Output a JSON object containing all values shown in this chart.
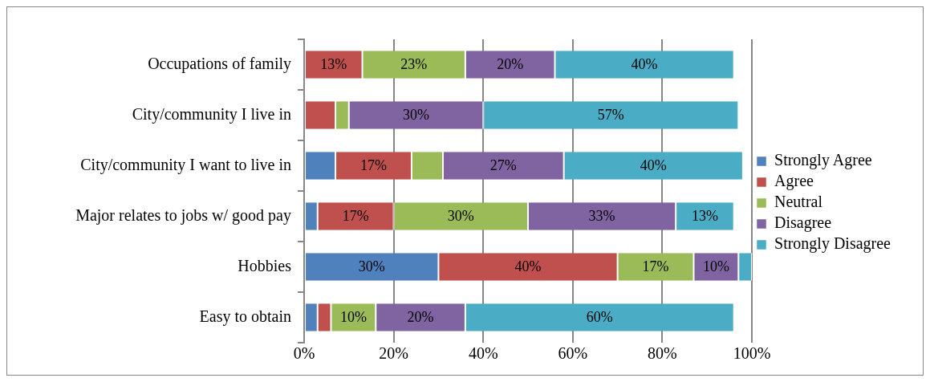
{
  "chart_data": {
    "type": "bar",
    "orientation": "horizontal",
    "stacked": true,
    "categories": [
      "Occupations of family",
      "City/community I live in",
      "City/community I want to live in",
      "Major relates to jobs w/ good pay",
      "Hobbies",
      "Easy to obtain"
    ],
    "series": [
      {
        "name": "Strongly Agree",
        "color": "#4f81bd",
        "values": [
          0,
          0,
          7.0,
          3.0,
          30.0,
          3.0
        ],
        "value_labels": [
          null,
          null,
          null,
          null,
          "30%",
          null
        ]
      },
      {
        "name": "Agree",
        "color": "#c0504d",
        "values": [
          13,
          7,
          17,
          17,
          40,
          3
        ],
        "value_labels": [
          "13%",
          null,
          "17%",
          "17%",
          "40%",
          null
        ]
      },
      {
        "name": "Neutral",
        "color": "#9bbb59",
        "values": [
          23,
          3,
          7,
          30,
          17,
          10
        ],
        "value_labels": [
          "23%",
          null,
          null,
          "30%",
          "17%",
          "10%"
        ]
      },
      {
        "name": "Disagree",
        "color": "#8064a2",
        "values": [
          20,
          30,
          27,
          33,
          10,
          20
        ],
        "value_labels": [
          "20%",
          "30%",
          "27%",
          "33%",
          "10%",
          "20%"
        ]
      },
      {
        "name": "Strongly Disagree",
        "color": "#4bacc6",
        "values": [
          40,
          57,
          40,
          13,
          3,
          60
        ],
        "value_labels": [
          "40%",
          "57%",
          "40%",
          "13%",
          null,
          "60%"
        ]
      }
    ],
    "xlim": [
      0,
      100
    ],
    "xticks": [
      {
        "value": 0,
        "label": "0%"
      },
      {
        "value": 20,
        "label": "20%"
      },
      {
        "value": 40,
        "label": "40%"
      },
      {
        "value": 60,
        "label": "60%"
      },
      {
        "value": 80,
        "label": "80%"
      },
      {
        "value": 100,
        "label": "100%"
      }
    ],
    "grid": "x",
    "legend": "right"
  }
}
